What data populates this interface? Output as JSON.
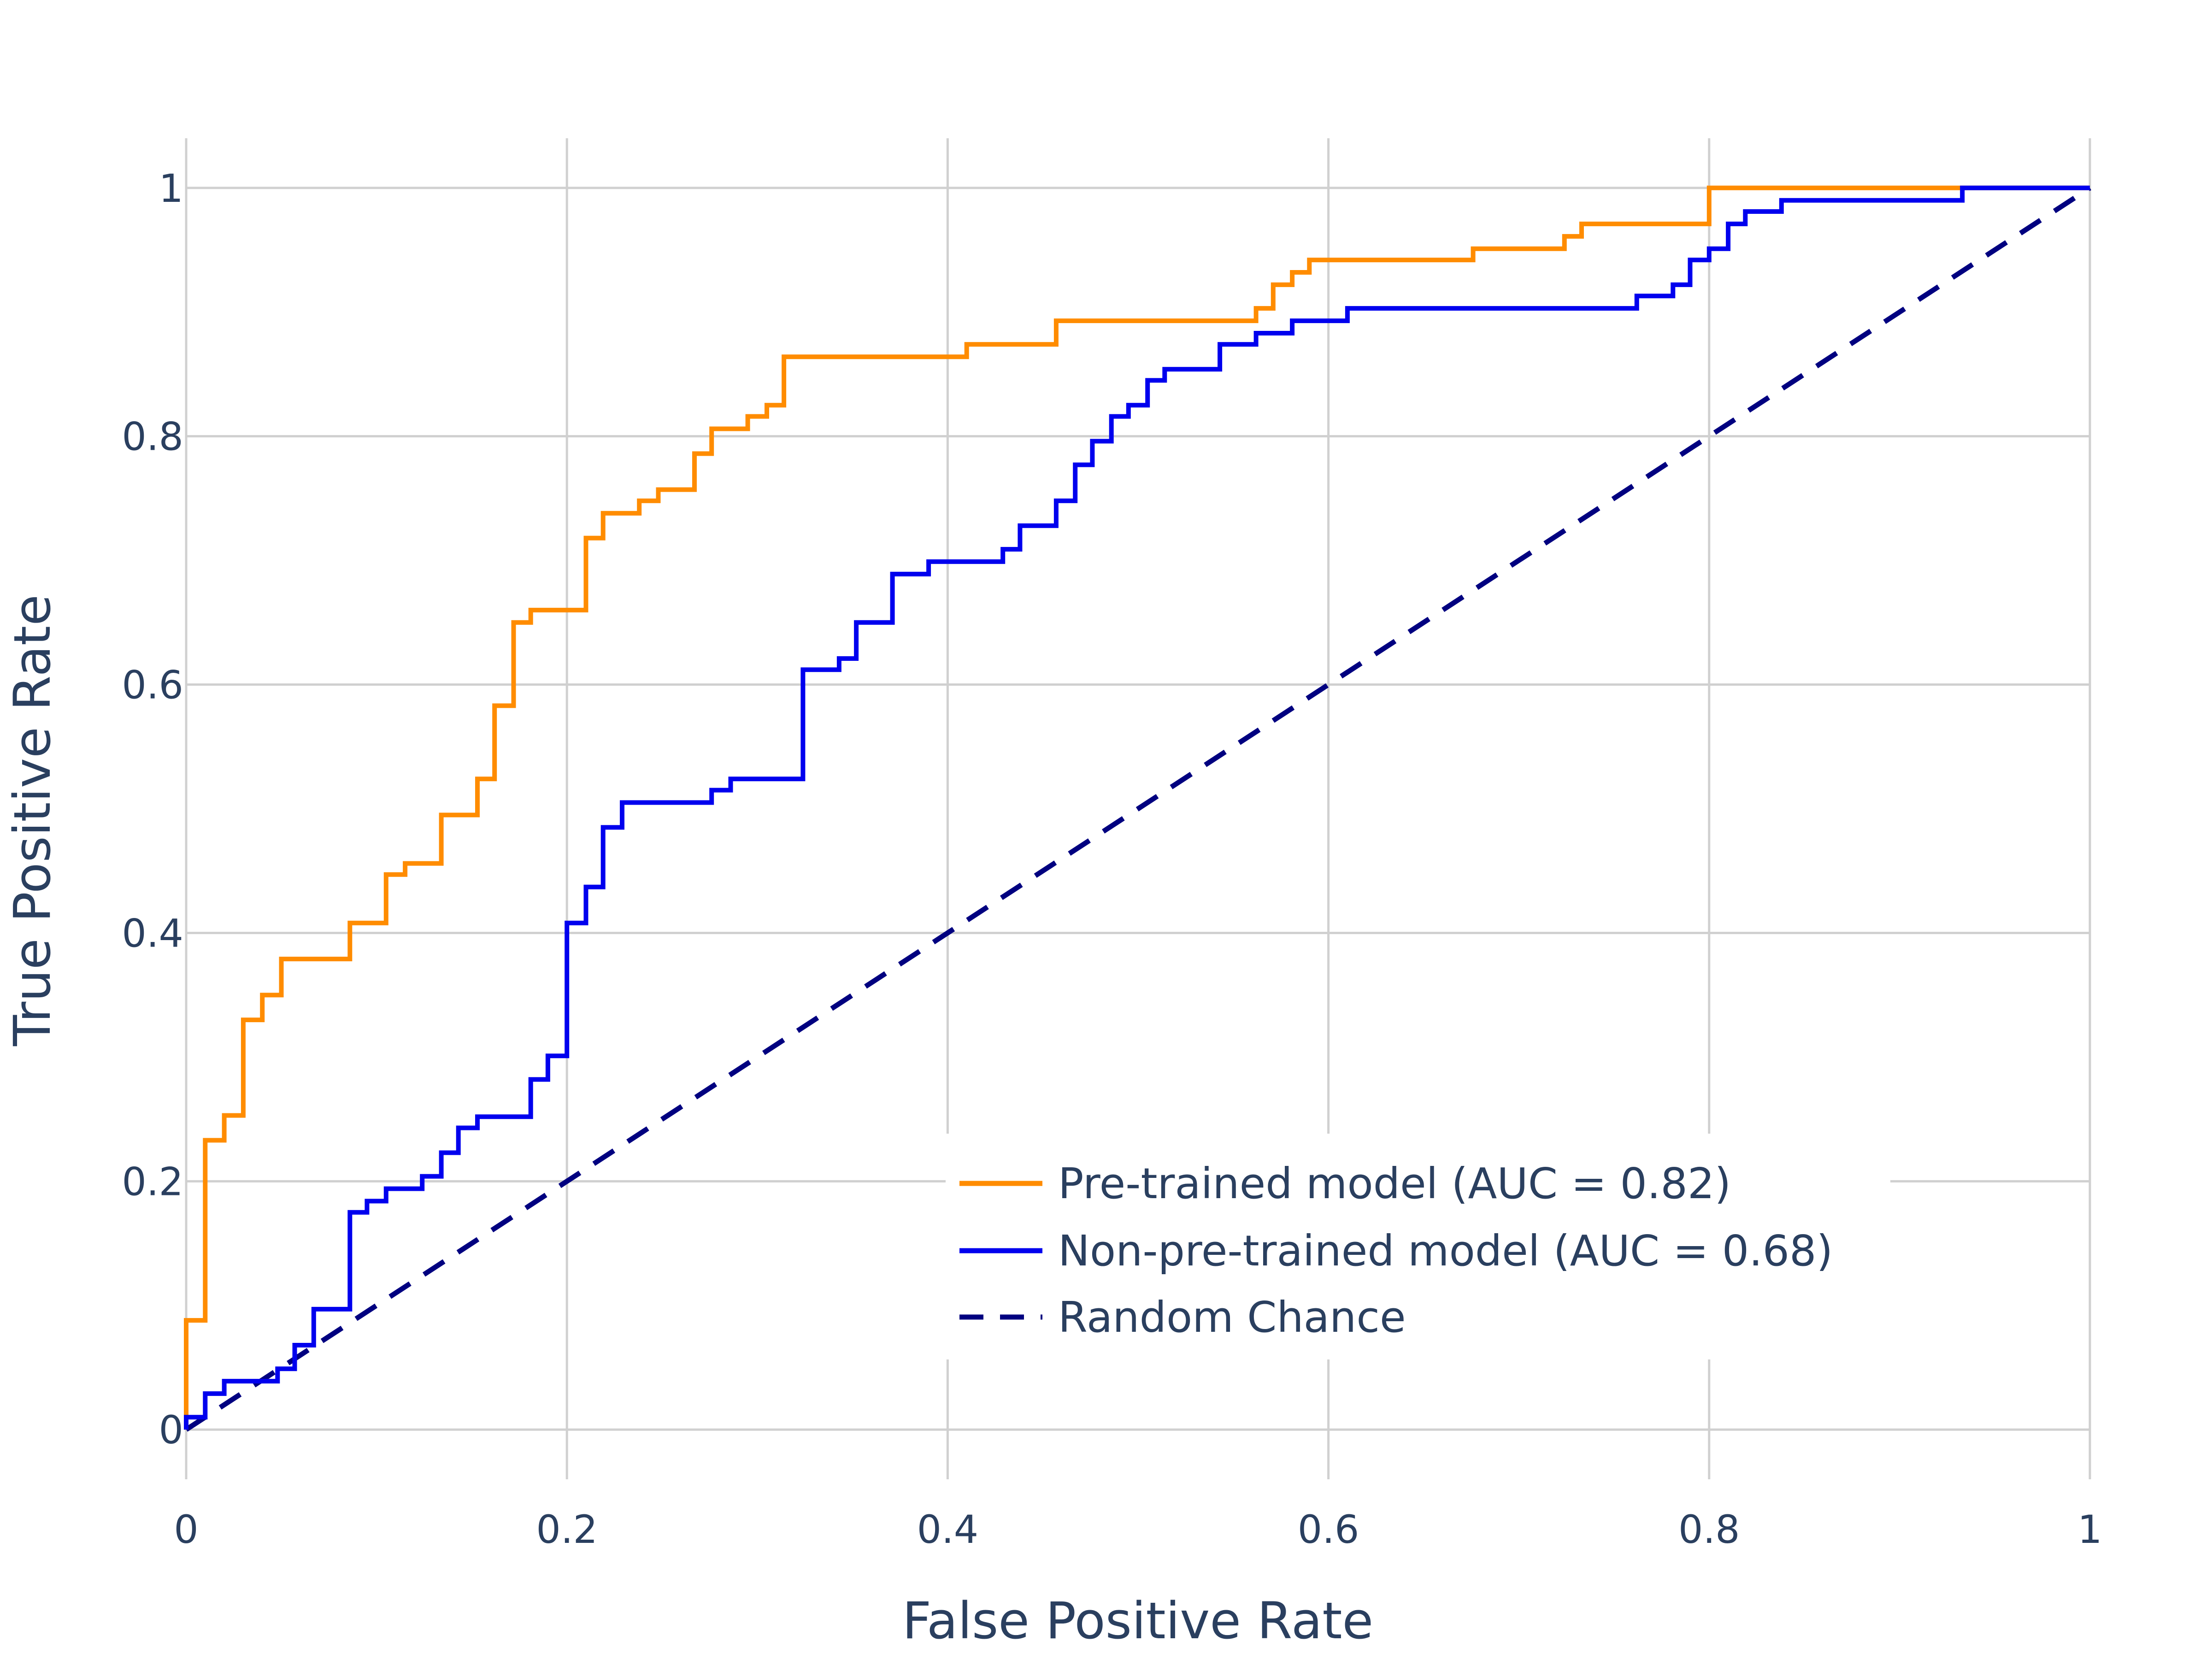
{
  "chart_data": {
    "type": "line",
    "title": "",
    "xlabel": "False Positive Rate",
    "ylabel": "True Positive Rate",
    "xlim": [
      0,
      1
    ],
    "ylim": [
      -0.04,
      1.04
    ],
    "x_ticks": [
      0,
      0.2,
      0.4,
      0.6,
      0.8,
      1
    ],
    "x_tick_labels": [
      "0",
      "0.2",
      "0.4",
      "0.6",
      "0.8",
      "1"
    ],
    "y_ticks": [
      0,
      0.2,
      0.4,
      0.6,
      0.8,
      1
    ],
    "y_tick_labels": [
      "0",
      "0.2",
      "0.4",
      "0.6",
      "0.8",
      "1"
    ],
    "grid": true,
    "legend_position": "bottom-right",
    "series": [
      {
        "name": "Pre-trained model (AUC = 0.82)",
        "color": "#ff8c00",
        "dash": "solid",
        "x": [
          0,
          0,
          0.01,
          0.01,
          0.02,
          0.02,
          0.03,
          0.03,
          0.04,
          0.04,
          0.05,
          0.05,
          0.086,
          0.086,
          0.105,
          0.105,
          0.115,
          0.115,
          0.134,
          0.134,
          0.153,
          0.153,
          0.162,
          0.162,
          0.172,
          0.172,
          0.181,
          0.181,
          0.21,
          0.21,
          0.219,
          0.219,
          0.238,
          0.238,
          0.248,
          0.248,
          0.267,
          0.267,
          0.276,
          0.276,
          0.295,
          0.295,
          0.305,
          0.305,
          0.314,
          0.314,
          0.41,
          0.41,
          0.457,
          0.457,
          0.562,
          0.562,
          0.571,
          0.571,
          0.581,
          0.581,
          0.59,
          0.59,
          0.676,
          0.676,
          0.724,
          0.724,
          0.733,
          0.733,
          0.8,
          0.8,
          1
        ],
        "y": [
          0,
          0.088,
          0.088,
          0.233,
          0.233,
          0.253,
          0.253,
          0.33,
          0.33,
          0.35,
          0.35,
          0.379,
          0.379,
          0.408,
          0.408,
          0.447,
          0.447,
          0.456,
          0.456,
          0.495,
          0.495,
          0.524,
          0.524,
          0.583,
          0.583,
          0.65,
          0.65,
          0.66,
          0.66,
          0.718,
          0.718,
          0.738,
          0.738,
          0.748,
          0.748,
          0.757,
          0.757,
          0.786,
          0.786,
          0.806,
          0.806,
          0.816,
          0.816,
          0.825,
          0.825,
          0.864,
          0.864,
          0.874,
          0.874,
          0.893,
          0.893,
          0.903,
          0.903,
          0.922,
          0.922,
          0.932,
          0.932,
          0.942,
          0.942,
          0.951,
          0.951,
          0.961,
          0.961,
          0.971,
          0.971,
          1,
          1
        ]
      },
      {
        "name": "Non-pre-trained model (AUC = 0.68)",
        "color": "#0000ee",
        "dash": "solid",
        "x": [
          0,
          0,
          0.01,
          0.01,
          0.02,
          0.02,
          0.048,
          0.048,
          0.057,
          0.057,
          0.067,
          0.067,
          0.086,
          0.086,
          0.095,
          0.095,
          0.105,
          0.105,
          0.124,
          0.124,
          0.134,
          0.134,
          0.143,
          0.143,
          0.153,
          0.153,
          0.181,
          0.181,
          0.19,
          0.19,
          0.2,
          0.2,
          0.21,
          0.21,
          0.219,
          0.219,
          0.229,
          0.229,
          0.276,
          0.276,
          0.286,
          0.286,
          0.324,
          0.324,
          0.343,
          0.343,
          0.352,
          0.352,
          0.371,
          0.371,
          0.39,
          0.39,
          0.429,
          0.429,
          0.438,
          0.438,
          0.457,
          0.457,
          0.467,
          0.467,
          0.476,
          0.476,
          0.486,
          0.486,
          0.495,
          0.495,
          0.505,
          0.505,
          0.514,
          0.514,
          0.543,
          0.543,
          0.562,
          0.562,
          0.581,
          0.581,
          0.61,
          0.61,
          0.762,
          0.762,
          0.781,
          0.781,
          0.79,
          0.79,
          0.8,
          0.8,
          0.81,
          0.81,
          0.819,
          0.819,
          0.838,
          0.838,
          0.848,
          0.848,
          0.933,
          0.933,
          1
        ],
        "y": [
          0,
          0.01,
          0.01,
          0.029,
          0.029,
          0.039,
          0.039,
          0.049,
          0.049,
          0.068,
          0.068,
          0.097,
          0.097,
          0.175,
          0.175,
          0.184,
          0.184,
          0.194,
          0.194,
          0.204,
          0.204,
          0.223,
          0.223,
          0.243,
          0.243,
          0.252,
          0.252,
          0.282,
          0.282,
          0.301,
          0.301,
          0.408,
          0.408,
          0.437,
          0.437,
          0.485,
          0.485,
          0.505,
          0.505,
          0.515,
          0.515,
          0.524,
          0.524,
          0.612,
          0.612,
          0.621,
          0.621,
          0.65,
          0.65,
          0.689,
          0.689,
          0.699,
          0.699,
          0.709,
          0.709,
          0.728,
          0.728,
          0.748,
          0.748,
          0.777,
          0.777,
          0.796,
          0.796,
          0.816,
          0.816,
          0.825,
          0.825,
          0.845,
          0.845,
          0.854,
          0.854,
          0.874,
          0.874,
          0.883,
          0.883,
          0.893,
          0.893,
          0.903,
          0.903,
          0.913,
          0.913,
          0.922,
          0.922,
          0.942,
          0.942,
          0.951,
          0.951,
          0.971,
          0.971,
          0.981,
          0.981,
          0.99,
          0.99,
          0.99,
          0.99,
          1,
          1
        ]
      },
      {
        "name": "Random Chance",
        "color": "#000080",
        "dash": "dashed",
        "x": [
          0,
          1
        ],
        "y": [
          0,
          1
        ]
      }
    ]
  }
}
